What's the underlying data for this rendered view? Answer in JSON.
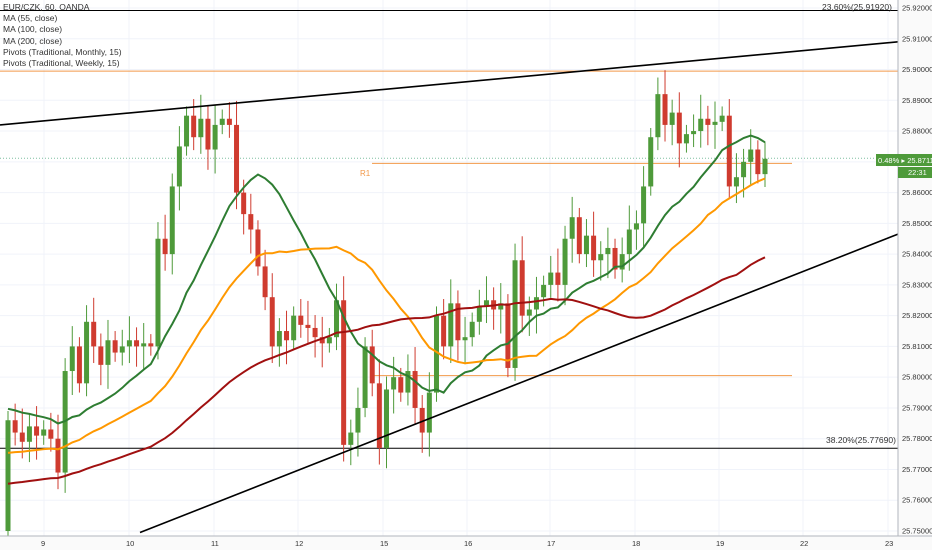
{
  "legend": {
    "symbol": "EUR/CZK, 60, OANDA",
    "ma55": "MA (55, close)",
    "ma100": "MA (100, close)",
    "ma200": "MA (200, close)",
    "pivots_monthly": "Pivots (Traditional, Monthly, 15)",
    "pivots_weekly": "Pivots (Traditional, Weekly, 15)"
  },
  "price_badge": {
    "text": "0.48% ▸ 25.87116",
    "time": "22:31",
    "color": "#4e9a3a"
  },
  "fib_labels": {
    "top": "23.60%(25.91920)",
    "bottom": "38.20%(25.77690)"
  },
  "pivot_label": "R1",
  "colors": {
    "up": "#4e9a3a",
    "down": "#cf3b2f",
    "ma55": "#2e7d32",
    "ma100": "#ff9800",
    "ma200": "#a01010",
    "pivot": "#f2994a",
    "trend": "#000000",
    "axis_bg": "#fafafa"
  },
  "chart_data": {
    "type": "candlestick",
    "title": "EUR/CZK, 60, OANDA",
    "ylim": [
      25.75,
      25.92
    ],
    "y_ticks": [
      "25.75000",
      "25.76000",
      "25.77000",
      "25.78000",
      "25.79000",
      "25.80000",
      "25.81000",
      "25.82000",
      "25.83000",
      "25.84000",
      "25.85000",
      "25.86000",
      "25.87000",
      "25.88000",
      "25.89000",
      "25.90000",
      "25.91000",
      "25.92000"
    ],
    "x_ticks": [
      "9",
      "10",
      "11",
      "12",
      "15",
      "16",
      "17",
      "18",
      "19",
      "22",
      "23"
    ],
    "last_price": 25.87116,
    "candles": [
      [
        25.75,
        25.786
      ],
      [
        25.786,
        25.782
      ],
      [
        25.782,
        25.779
      ],
      [
        25.779,
        25.784
      ],
      [
        25.784,
        25.781
      ],
      [
        25.781,
        25.783
      ],
      [
        25.783,
        25.78
      ],
      [
        25.78,
        25.769
      ],
      [
        25.769,
        25.802
      ],
      [
        25.802,
        25.81
      ],
      [
        25.81,
        25.798
      ],
      [
        25.798,
        25.818
      ],
      [
        25.818,
        25.81
      ],
      [
        25.81,
        25.804
      ],
      [
        25.804,
        25.812
      ],
      [
        25.812,
        25.808
      ],
      [
        25.808,
        25.81
      ],
      [
        25.81,
        25.812
      ],
      [
        25.812,
        25.81
      ],
      [
        25.81,
        25.811
      ],
      [
        25.811,
        25.81
      ],
      [
        25.81,
        25.845
      ],
      [
        25.845,
        25.84
      ],
      [
        25.84,
        25.862
      ],
      [
        25.862,
        25.875
      ],
      [
        25.875,
        25.885
      ],
      [
        25.885,
        25.878
      ],
      [
        25.878,
        25.884
      ],
      [
        25.884,
        25.874
      ],
      [
        25.874,
        25.882
      ],
      [
        25.882,
        25.884
      ],
      [
        25.884,
        25.882
      ],
      [
        25.882,
        25.86
      ],
      [
        25.86,
        25.853
      ],
      [
        25.853,
        25.848
      ],
      [
        25.848,
        25.836
      ],
      [
        25.836,
        25.826
      ],
      [
        25.826,
        25.81
      ],
      [
        25.81,
        25.815
      ],
      [
        25.815,
        25.812
      ],
      [
        25.812,
        25.82
      ],
      [
        25.82,
        25.817
      ],
      [
        25.817,
        25.816
      ],
      [
        25.816,
        25.813
      ],
      [
        25.813,
        25.811
      ],
      [
        25.811,
        25.813
      ],
      [
        25.813,
        25.825
      ],
      [
        25.825,
        25.778
      ],
      [
        25.778,
        25.782
      ],
      [
        25.782,
        25.79
      ],
      [
        25.79,
        25.81
      ],
      [
        25.81,
        25.798
      ],
      [
        25.798,
        25.777
      ],
      [
        25.777,
        25.796
      ],
      [
        25.796,
        25.8
      ],
      [
        25.8,
        25.795
      ],
      [
        25.795,
        25.802
      ],
      [
        25.802,
        25.79
      ],
      [
        25.79,
        25.782
      ],
      [
        25.782,
        25.795
      ],
      [
        25.795,
        25.82
      ],
      [
        25.82,
        25.81
      ],
      [
        25.81,
        25.824
      ],
      [
        25.824,
        25.812
      ],
      [
        25.812,
        25.813
      ],
      [
        25.813,
        25.818
      ],
      [
        25.818,
        25.823
      ],
      [
        25.823,
        25.825
      ],
      [
        25.825,
        25.822
      ],
      [
        25.822,
        25.824
      ],
      [
        25.824,
        25.803
      ],
      [
        25.803,
        25.838
      ],
      [
        25.838,
        25.82
      ],
      [
        25.82,
        25.822
      ],
      [
        25.822,
        25.826
      ],
      [
        25.826,
        25.83
      ],
      [
        25.83,
        25.834
      ],
      [
        25.834,
        25.83
      ],
      [
        25.83,
        25.845
      ],
      [
        25.845,
        25.852
      ],
      [
        25.852,
        25.84
      ],
      [
        25.84,
        25.846
      ],
      [
        25.846,
        25.838
      ],
      [
        25.838,
        25.84
      ],
      [
        25.84,
        25.842
      ],
      [
        25.842,
        25.835
      ],
      [
        25.835,
        25.84
      ],
      [
        25.84,
        25.848
      ],
      [
        25.848,
        25.85
      ],
      [
        25.85,
        25.862
      ],
      [
        25.862,
        25.878
      ],
      [
        25.878,
        25.892
      ],
      [
        25.892,
        25.882
      ],
      [
        25.882,
        25.886
      ],
      [
        25.886,
        25.876
      ],
      [
        25.876,
        25.879
      ],
      [
        25.879,
        25.88
      ],
      [
        25.88,
        25.884
      ],
      [
        25.884,
        25.882
      ],
      [
        25.882,
        25.883
      ],
      [
        25.883,
        25.885
      ],
      [
        25.885,
        25.862
      ],
      [
        25.862,
        25.865
      ],
      [
        25.865,
        25.87
      ],
      [
        25.87,
        25.874
      ],
      [
        25.874,
        25.866
      ],
      [
        25.866,
        25.871
      ]
    ]
  }
}
